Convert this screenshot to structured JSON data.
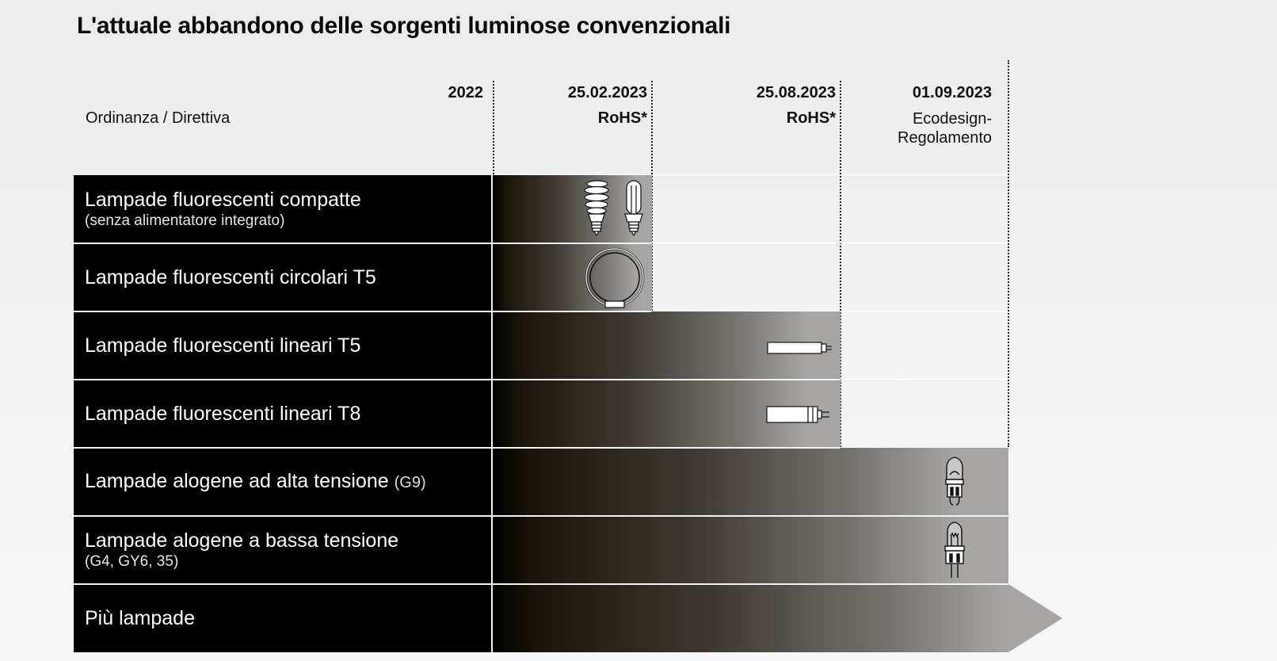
{
  "title": "L'attuale abbandono delle sorgenti luminose convenzionali",
  "header": {
    "label": "Ordinanza / Direttiva",
    "columns": [
      {
        "date": "2022",
        "sub": ""
      },
      {
        "date": "25.02.2023",
        "sub": "RoHS*"
      },
      {
        "date": "25.08.2023",
        "sub": "RoHS*"
      },
      {
        "date": "01.09.2023",
        "sub_line1": "Ecodesign-",
        "sub_line2": "Regolamento"
      }
    ]
  },
  "rows": [
    {
      "label": "Lampade fluorescenti compatte",
      "detail": "(senza alimentatore integrato)",
      "icon": "compact-fluorescent-lamp-icon"
    },
    {
      "label": "Lampade fluorescenti circolari T5",
      "detail": "",
      "icon": "circular-fluorescent-lamp-icon"
    },
    {
      "label": "Lampade fluorescenti lineari T5",
      "detail": "",
      "icon": "linear-tube-t5-icon"
    },
    {
      "label": "Lampade fluorescenti lineari T8",
      "detail": "",
      "icon": "linear-tube-t8-icon"
    },
    {
      "label": "Lampade alogene ad alta tensione",
      "detail": "(G9)",
      "icon": "halogen-g9-capsule-icon"
    },
    {
      "label": "Lampade alogene a bassa tensione",
      "detail": "(G4, GY6, 35)",
      "icon": "halogen-low-voltage-capsule-icon"
    },
    {
      "label": "Più lampade",
      "detail": "",
      "icon": "arrow-icon"
    }
  ],
  "colors": {
    "row_bg": "#000000",
    "bar_end": "#a6a5a3",
    "page_bg": "#efefef"
  }
}
